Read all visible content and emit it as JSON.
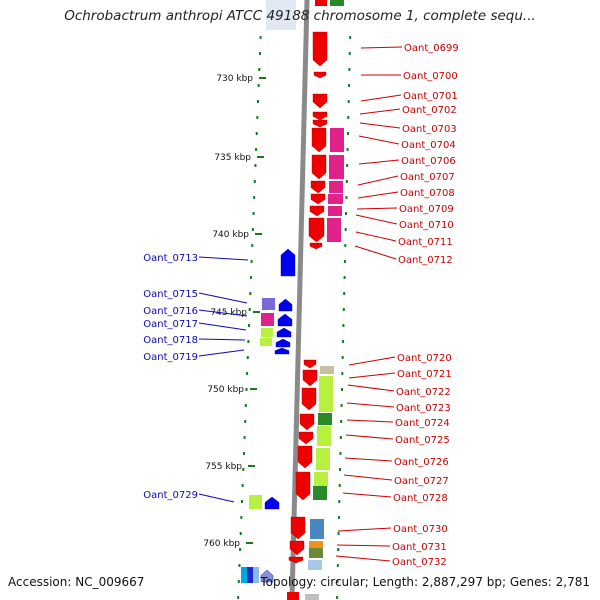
{
  "title": "Ochrobactrum anthropi ATCC 49188 chromosome 1, complete sequ...",
  "accession": "Accession: NC_009667",
  "topology": "Topology: circular; Length: 2,887,297 bp; Genes: 2,781",
  "colors": {
    "forward_label": "#0a0ab4",
    "reverse_label": "#cc0000",
    "tick": "#1a7a1a",
    "strand_line": "#8a8a8a",
    "forward_gene": "#0000ee",
    "reverse_gene": "#ee0000",
    "cog_pink": "#e0228a",
    "cog_green": "#b8f040",
    "cog_purple": "#7a6ad8",
    "cog_darkgreen": "#2a8a2a",
    "cog_steel": "#4a86c0",
    "cog_orange": "#f09020",
    "cog_olive": "#6a8a3a"
  },
  "kbp_ticks": [
    "730 kbp",
    "735 kbp",
    "740 kbp",
    "745 kbp",
    "750 kbp",
    "755 kbp",
    "760 kbp"
  ],
  "forward_genes": [
    "Oant_0713",
    "Oant_0715",
    "Oant_0716",
    "Oant_0717",
    "Oant_0718",
    "Oant_0719",
    "Oant_0729"
  ],
  "reverse_genes": [
    "Oant_0699",
    "Oant_0700",
    "Oant_0701",
    "Oant_0702",
    "Oant_0703",
    "Oant_0704",
    "Oant_0706",
    "Oant_0707",
    "Oant_0708",
    "Oant_0709",
    "Oant_0710",
    "Oant_0711",
    "Oant_0712",
    "Oant_0720",
    "Oant_0721",
    "Oant_0722",
    "Oant_0723",
    "Oant_0724",
    "Oant_0725",
    "Oant_0726",
    "Oant_0727",
    "Oant_0728",
    "Oant_0730",
    "Oant_0731",
    "Oant_0732"
  ]
}
